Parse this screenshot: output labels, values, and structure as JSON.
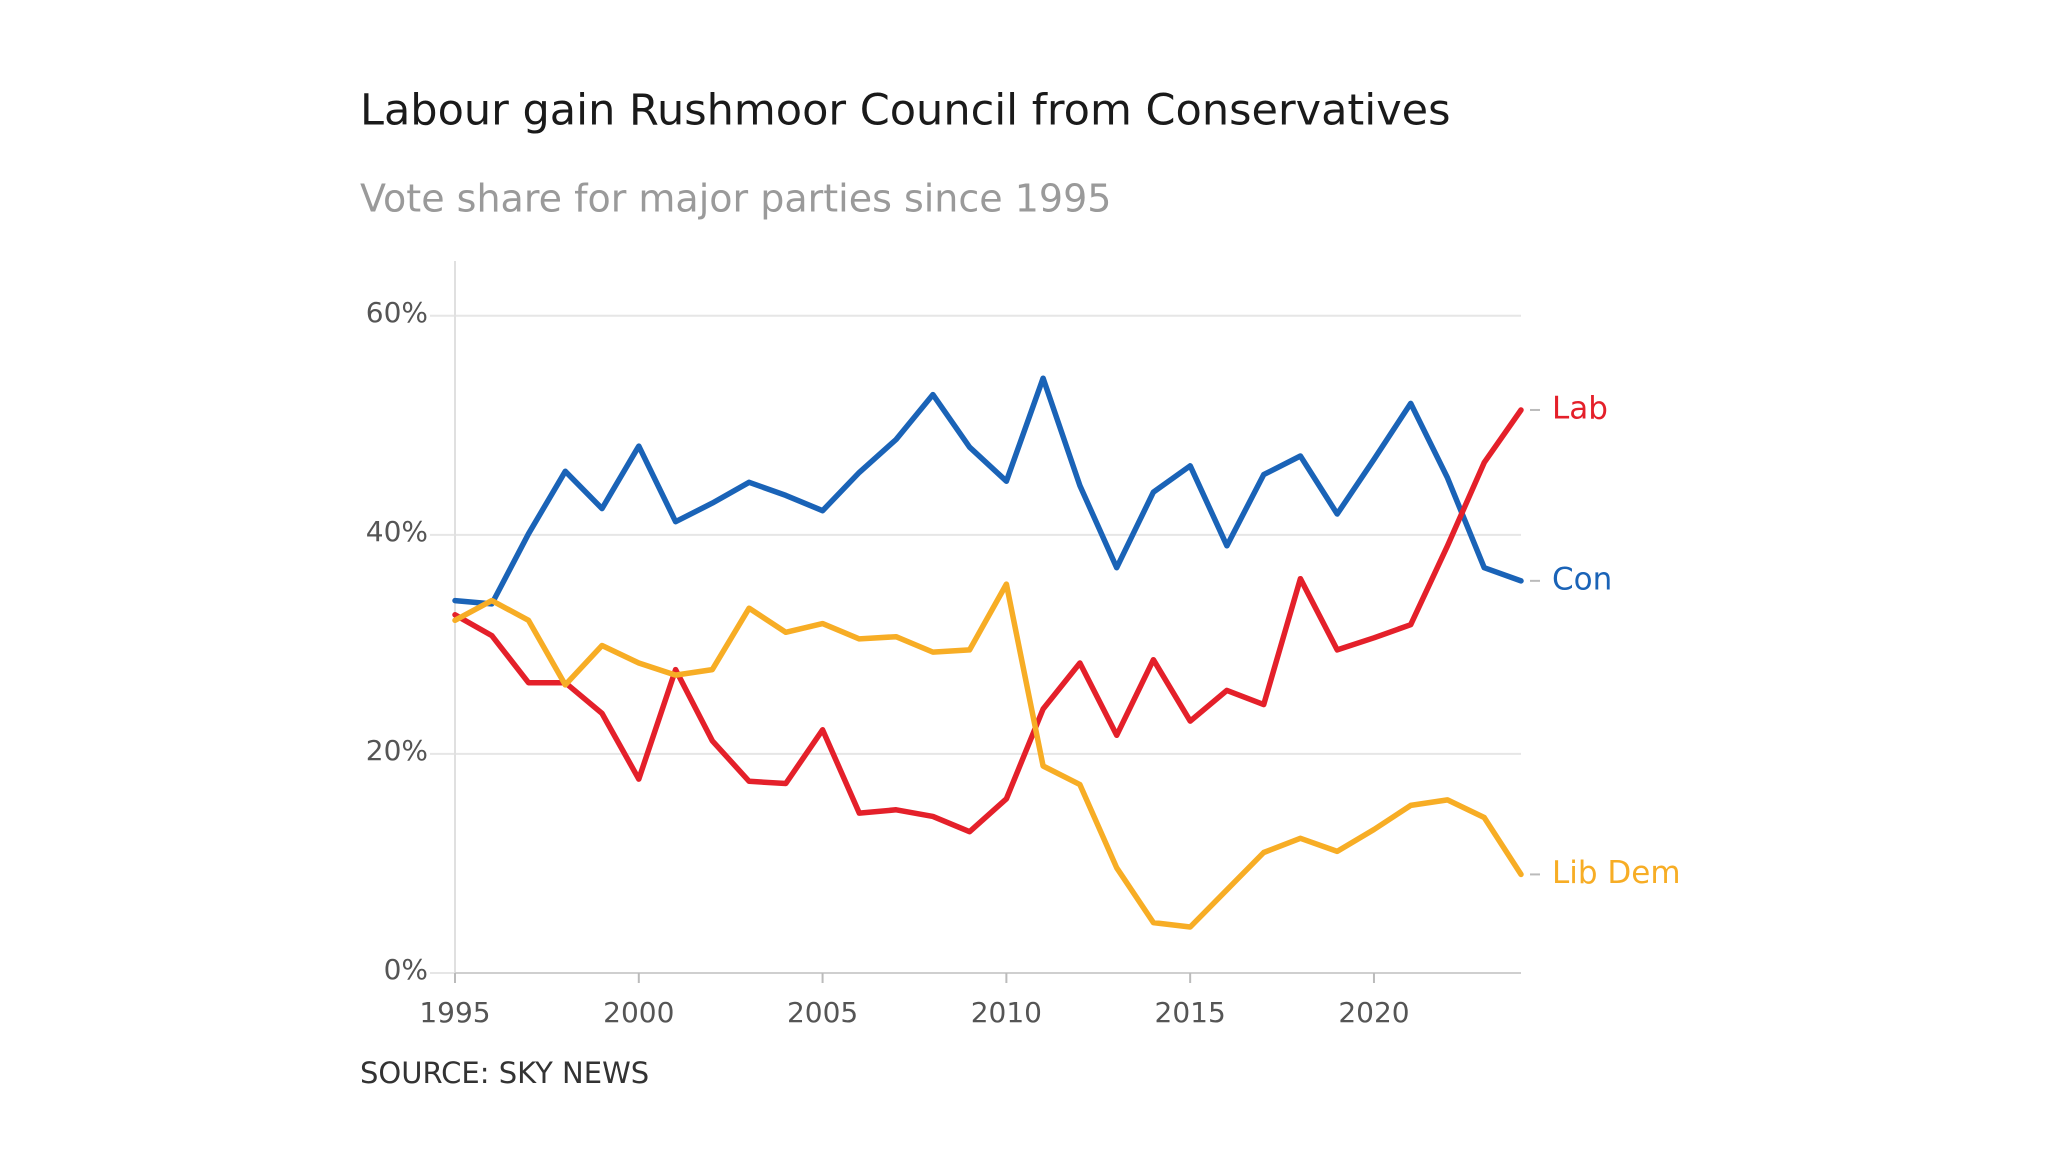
{
  "chart_data": {
    "type": "line",
    "title": "Labour gain Rushmoor Council from Conservatives",
    "subtitle": "Vote share for major parties since 1995",
    "source": "SOURCE: SKY NEWS",
    "x": [
      1995,
      1996,
      1997,
      1998,
      1999,
      2000,
      2001,
      2002,
      2003,
      2004,
      2005,
      2006,
      2007,
      2008,
      2009,
      2010,
      2011,
      2012,
      2013,
      2014,
      2015,
      2016,
      2017,
      2018,
      2019,
      2020,
      2021,
      2022,
      2023,
      2024
    ],
    "xlim": [
      1995,
      2024
    ],
    "xticks": [
      1995,
      2000,
      2005,
      2010,
      2015,
      2020
    ],
    "ylim": [
      0,
      65
    ],
    "yticks": [
      {
        "value": 0,
        "label": "0%"
      },
      {
        "value": 20,
        "label": "20%"
      },
      {
        "value": 40,
        "label": "40%"
      },
      {
        "value": 60,
        "label": "60%"
      }
    ],
    "grid": true,
    "series": [
      {
        "name": "Con",
        "color": "#1a63b7",
        "values": [
          34.0,
          33.7,
          40.1,
          45.8,
          42.4,
          48.1,
          41.2,
          42.9,
          44.8,
          43.6,
          42.2,
          45.7,
          48.7,
          52.8,
          48.0,
          44.9,
          54.3,
          44.5,
          37.0,
          43.9,
          46.3,
          39.0,
          45.5,
          47.2,
          41.9,
          46.9,
          52.0,
          45.2,
          37.0,
          35.8
        ]
      },
      {
        "name": "Lab",
        "color": "#e4202a",
        "values": [
          32.7,
          30.8,
          26.5,
          26.5,
          23.7,
          17.7,
          27.7,
          21.2,
          17.5,
          17.3,
          22.2,
          14.6,
          14.9,
          14.3,
          12.9,
          15.9,
          24.1,
          28.3,
          21.7,
          28.6,
          23.0,
          25.8,
          24.5,
          36.0,
          29.5,
          30.6,
          31.8,
          39.0,
          46.6,
          51.4
        ]
      },
      {
        "name": "Lib Dem",
        "color": "#f7ad25",
        "values": [
          32.2,
          34.0,
          32.2,
          26.3,
          29.9,
          28.3,
          27.2,
          27.7,
          33.3,
          31.1,
          31.9,
          30.5,
          30.7,
          29.3,
          29.5,
          35.5,
          18.9,
          17.2,
          9.6,
          4.6,
          4.2,
          7.6,
          11.0,
          12.3,
          11.1,
          13.1,
          15.3,
          15.8,
          14.2,
          9.0
        ]
      }
    ]
  }
}
